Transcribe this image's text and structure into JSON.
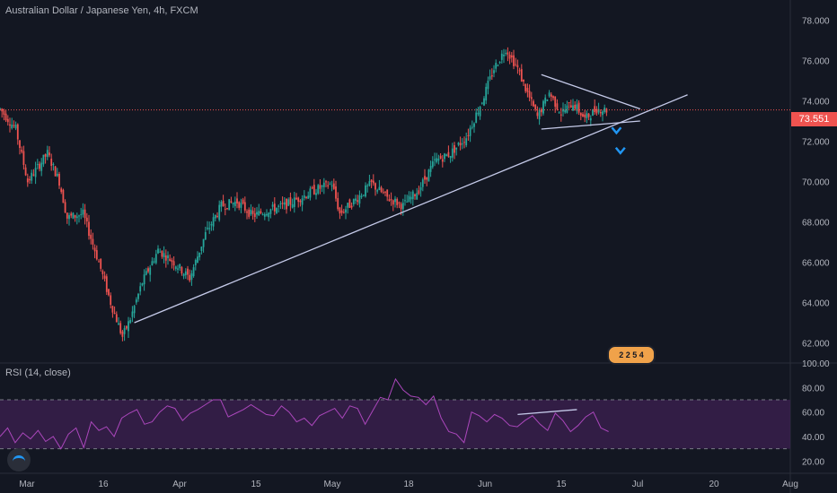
{
  "title": "Australian Dollar / Japanese Yen, 4h, FXCM",
  "rsi_title": "RSI (14, close)",
  "last_price_label": "73.551",
  "badge_text": "2 2 5 4",
  "colors": {
    "background": "#131722",
    "up_candle": "#26a69a",
    "down_candle": "#ef5350",
    "trendline": "#c5cae9",
    "rsi_line": "#ab47bc",
    "rsi_band": "#3b1f4f",
    "price_line": "#ef5350",
    "arrow": "#2196f3"
  },
  "chart_data": [
    {
      "type": "candlestick",
      "title": "Australian Dollar / Japanese Yen, 4h, FXCM",
      "ylim": [
        61.0,
        79.0
      ],
      "y_ticks": [
        "62.000",
        "64.000",
        "66.000",
        "68.000",
        "70.000",
        "72.000",
        "74.000",
        "76.000",
        "78.000"
      ],
      "x_ticks": [
        "Mar",
        "16",
        "Apr",
        "15",
        "May",
        "18",
        "Jun",
        "15",
        "Jul",
        "20",
        "Aug"
      ],
      "last_price": 73.551,
      "close_path": [
        {
          "x": 0.0,
          "y": 73.6
        },
        {
          "x": 0.02,
          "y": 72.6
        },
        {
          "x": 0.035,
          "y": 70.0
        },
        {
          "x": 0.06,
          "y": 71.4
        },
        {
          "x": 0.075,
          "y": 70.0
        },
        {
          "x": 0.085,
          "y": 68.2
        },
        {
          "x": 0.105,
          "y": 68.4
        },
        {
          "x": 0.125,
          "y": 66.0
        },
        {
          "x": 0.14,
          "y": 64.0
        },
        {
          "x": 0.155,
          "y": 62.3
        },
        {
          "x": 0.165,
          "y": 63.2
        },
        {
          "x": 0.18,
          "y": 65.0
        },
        {
          "x": 0.2,
          "y": 66.6
        },
        {
          "x": 0.22,
          "y": 66.0
        },
        {
          "x": 0.24,
          "y": 65.2
        },
        {
          "x": 0.26,
          "y": 67.4
        },
        {
          "x": 0.28,
          "y": 68.8
        },
        {
          "x": 0.3,
          "y": 69.0
        },
        {
          "x": 0.32,
          "y": 68.3
        },
        {
          "x": 0.34,
          "y": 68.6
        },
        {
          "x": 0.36,
          "y": 68.8
        },
        {
          "x": 0.38,
          "y": 69.2
        },
        {
          "x": 0.4,
          "y": 69.6
        },
        {
          "x": 0.42,
          "y": 69.9
        },
        {
          "x": 0.43,
          "y": 68.4
        },
        {
          "x": 0.45,
          "y": 69.1
        },
        {
          "x": 0.47,
          "y": 69.9
        },
        {
          "x": 0.49,
          "y": 69.2
        },
        {
          "x": 0.51,
          "y": 68.8
        },
        {
          "x": 0.53,
          "y": 69.6
        },
        {
          "x": 0.55,
          "y": 71.0
        },
        {
          "x": 0.57,
          "y": 71.4
        },
        {
          "x": 0.59,
          "y": 72.2
        },
        {
          "x": 0.61,
          "y": 74.0
        },
        {
          "x": 0.625,
          "y": 75.6
        },
        {
          "x": 0.64,
          "y": 76.6
        },
        {
          "x": 0.655,
          "y": 75.6
        },
        {
          "x": 0.665,
          "y": 74.6
        },
        {
          "x": 0.68,
          "y": 73.2
        },
        {
          "x": 0.695,
          "y": 74.4
        },
        {
          "x": 0.71,
          "y": 73.4
        },
        {
          "x": 0.725,
          "y": 73.9
        },
        {
          "x": 0.74,
          "y": 73.1
        },
        {
          "x": 0.755,
          "y": 73.6
        },
        {
          "x": 0.77,
          "y": 73.55
        }
      ],
      "annotations": {
        "trendline_main": [
          [
            0.17,
            63.0
          ],
          [
            0.87,
            74.3
          ]
        ],
        "wedge_upper": [
          [
            0.685,
            75.3
          ],
          [
            0.81,
            73.6
          ]
        ],
        "wedge_lower": [
          [
            0.685,
            72.6
          ],
          [
            0.81,
            73.0
          ]
        ],
        "arrows_down": [
          [
            0.78,
            72.5
          ],
          [
            0.785,
            71.5
          ]
        ]
      }
    },
    {
      "type": "line",
      "title": "RSI (14, close)",
      "ylim": [
        10,
        100
      ],
      "y_ticks": [
        "20.00",
        "40.00",
        "60.00",
        "80.00",
        "100.00"
      ],
      "bands": [
        30,
        70
      ],
      "values": [
        40,
        47,
        35,
        43,
        38,
        45,
        36,
        40,
        30,
        42,
        47,
        31,
        52,
        45,
        48,
        40,
        55,
        59,
        62,
        50,
        52,
        60,
        65,
        63,
        53,
        59,
        62,
        66,
        70,
        70,
        56,
        59,
        62,
        66,
        62,
        58,
        57,
        65,
        60,
        52,
        55,
        49,
        57,
        60,
        63,
        55,
        65,
        63,
        50,
        61,
        72,
        70,
        87,
        78,
        73,
        72,
        66,
        73,
        55,
        44,
        42,
        35,
        60,
        57,
        52,
        58,
        55,
        49,
        48,
        53,
        57,
        50,
        45,
        59,
        53,
        44,
        49,
        56,
        60,
        47,
        44
      ]
    }
  ]
}
